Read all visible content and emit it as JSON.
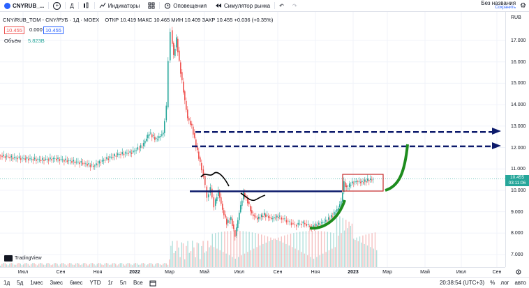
{
  "topbar": {
    "symbol": "CNYRUB_...",
    "timeframe": "Д",
    "indicators": "Индикаторы",
    "alerts": "Оповещения",
    "replay": "Симулятор рынка",
    "save_title": "Без названия",
    "save_sub": "Сохранить"
  },
  "legend": {
    "title": "CNY/RUB_TOM - CNY/РУБ · 1Д · MOEX",
    "ohlc": "ОТКР 10.419  МАКС 10.465  МИН 10.409  ЗАКР 10.455 +0.036 (+0.35%)",
    "bid": "10.455",
    "spread": "0.000",
    "ask": "10.455",
    "volume_label": "Объём",
    "volume_value": "5.823B"
  },
  "price_axis": {
    "currency": "RUB",
    "ticks": [
      "17.000",
      "16.000",
      "15.000",
      "14.000",
      "13.000",
      "12.000",
      "11.000",
      "10.000",
      "9.000",
      "8.000",
      "7.000"
    ],
    "current": "10.455",
    "countdown": "03:11:06"
  },
  "time_axis": {
    "labels": [
      "Июл",
      "Сен",
      "Ноя",
      "2022",
      "Мар",
      "Май",
      "Июл",
      "Сен",
      "Ноя",
      "2023",
      "Мар",
      "Май",
      "Июл",
      "Сен"
    ]
  },
  "bottombar": {
    "ranges": [
      "1д",
      "5д",
      "1мес",
      "3мес",
      "6мес",
      "YTD",
      "1г",
      "5л",
      "Все"
    ],
    "clock": "20:38:54 (UTC+3)",
    "percent": "%",
    "log": "лог",
    "auto": "авто"
  },
  "watermark": "TradingView",
  "colors": {
    "up": "#26a69a",
    "down": "#ef5350",
    "line": "#131722",
    "accent": "#2962ff",
    "annotation_navy": "#0c1a6b",
    "annotation_green": "#1e8c1e",
    "box": "#c62828"
  }
}
